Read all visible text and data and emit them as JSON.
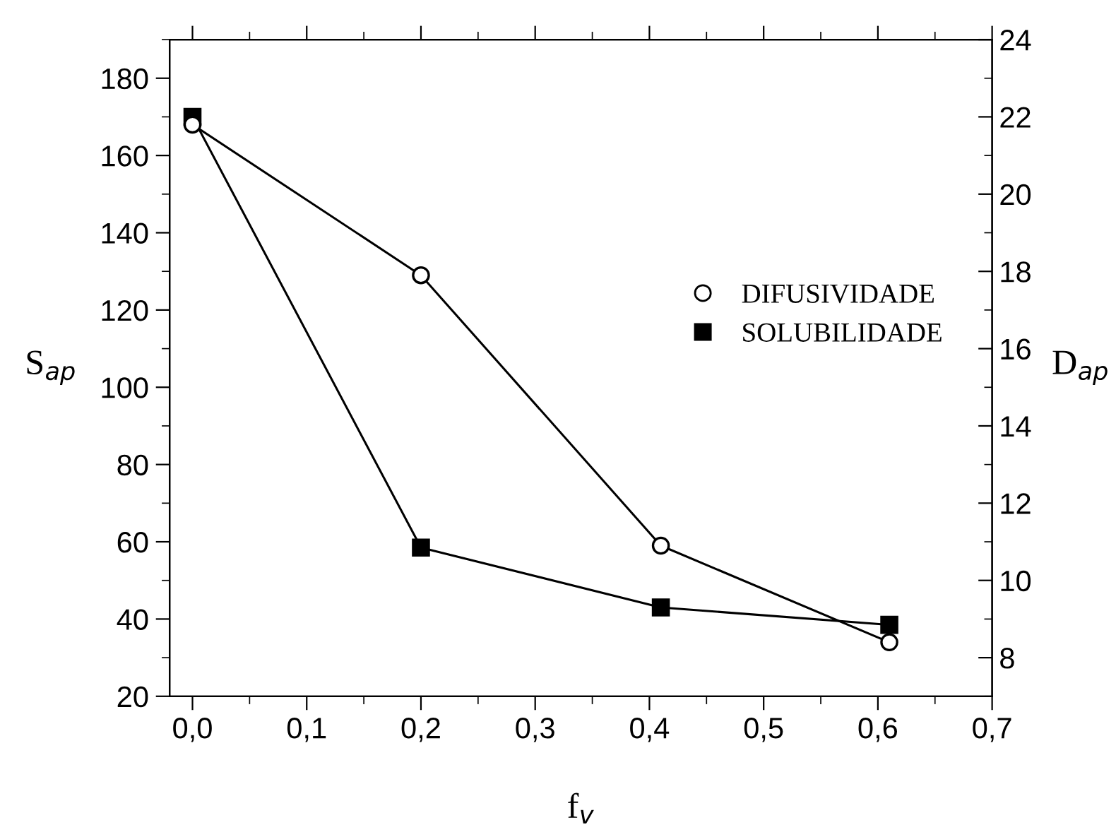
{
  "chart_data": {
    "type": "line",
    "xlabel": "f$_{v}$",
    "ylabel": "S$_{ap}$",
    "y2label": "D$_{ap}$",
    "xlim": [
      -0.02,
      0.7
    ],
    "xticks": [
      {
        "value": 0.0,
        "label": "0,0"
      },
      {
        "value": 0.1,
        "label": "0,1"
      },
      {
        "value": 0.2,
        "label": "0,2"
      },
      {
        "value": 0.3,
        "label": "0,3"
      },
      {
        "value": 0.4,
        "label": "0,4"
      },
      {
        "value": 0.5,
        "label": "0,5"
      },
      {
        "value": 0.6,
        "label": "0,6"
      },
      {
        "value": 0.7,
        "label": "0,7"
      }
    ],
    "ylim": [
      20,
      190
    ],
    "yticks": [
      20,
      40,
      60,
      80,
      100,
      120,
      140,
      160,
      180
    ],
    "y2lim": [
      7,
      24
    ],
    "y2ticks": [
      8,
      10,
      12,
      14,
      16,
      18,
      20,
      22,
      24
    ],
    "grid": false,
    "legend": "right",
    "series": [
      {
        "name": "DIFUSIVIDADE",
        "color": "#000000",
        "axis": "y2",
        "marker": "circle",
        "x": [
          0.0,
          0.2,
          0.41,
          0.61
        ],
        "values": [
          21.8,
          17.9,
          10.9,
          8.4
        ]
      },
      {
        "name": "SOLUBILIDADE",
        "color": "#000000",
        "axis": "y",
        "marker": "square",
        "x": [
          0.0,
          0.2,
          0.41,
          0.61
        ],
        "values": [
          170,
          58.5,
          43,
          38.5
        ]
      }
    ]
  }
}
